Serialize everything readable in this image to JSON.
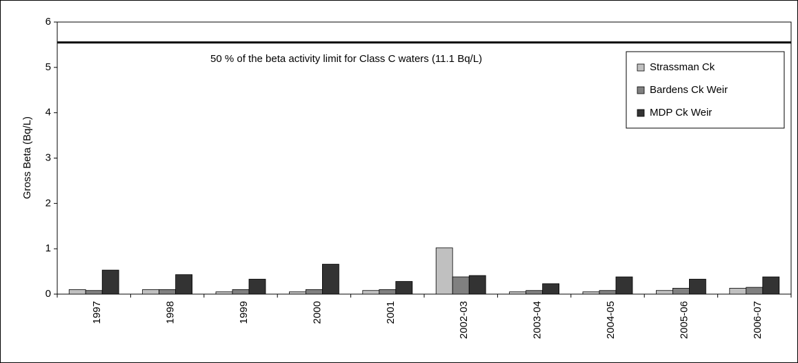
{
  "chart_data": {
    "type": "bar",
    "y_label": "Gross Beta (Bq/L)",
    "categories": [
      "1997",
      "1998",
      "1999",
      "2000",
      "2001",
      "2002-03",
      "2003-04",
      "2004-05",
      "2005-06",
      "2006-07"
    ],
    "series": [
      {
        "name": "Strassman Ck",
        "color": "#c0c0c0",
        "values": [
          0.1,
          0.1,
          0.05,
          0.05,
          0.08,
          1.02,
          0.05,
          0.05,
          0.08,
          0.13
        ]
      },
      {
        "name": "Bardens Ck Weir",
        "color": "#808080",
        "values": [
          0.08,
          0.1,
          0.1,
          0.1,
          0.1,
          0.38,
          0.08,
          0.08,
          0.13,
          0.15
        ]
      },
      {
        "name": "MDP Ck Weir",
        "color": "#333333",
        "values": [
          0.53,
          0.43,
          0.33,
          0.66,
          0.28,
          0.41,
          0.23,
          0.38,
          0.33,
          0.38
        ]
      }
    ],
    "reference_line": {
      "value": 5.55,
      "label": "50 % of the beta activity limit for Class C waters (11.1 Bq/L)"
    },
    "ylim": [
      0,
      6
    ],
    "yticks": [
      0,
      1,
      2,
      3,
      4,
      5,
      6
    ],
    "grid": false,
    "legend": "upper right"
  }
}
